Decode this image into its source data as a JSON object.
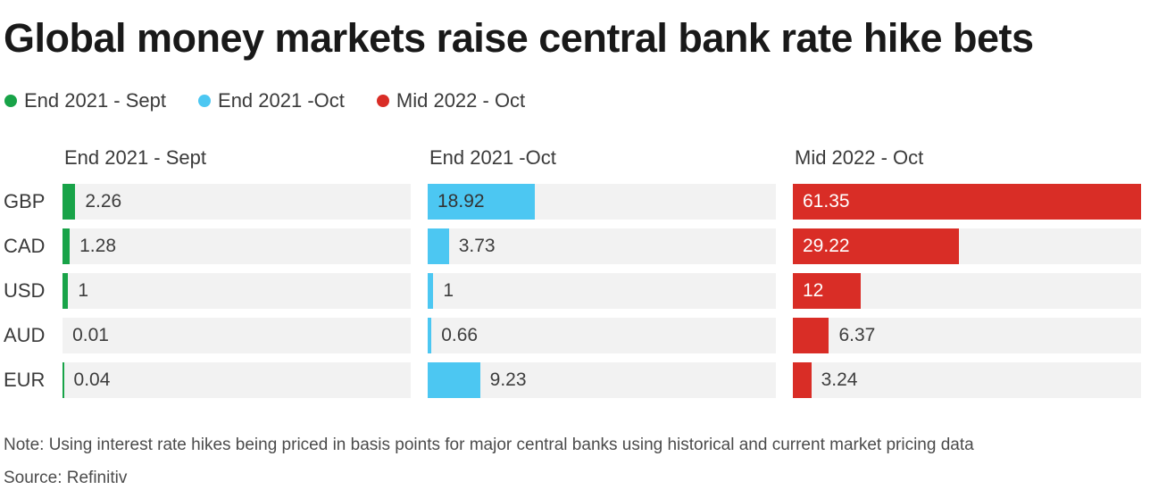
{
  "title": "Global money markets raise central bank rate hike bets",
  "note": "Note: Using interest rate hikes being priced in basis points for major central banks using historical and current market pricing data",
  "source": "Source: Refinitiv",
  "colors": {
    "green": "#18a348",
    "blue": "#4cc7f2",
    "red": "#d92d26",
    "track": "#f2f2f2",
    "value_text": "#3d3d3d",
    "title_text": "#191919"
  },
  "chart_data": {
    "type": "bar",
    "orientation": "horizontal",
    "title": "Global money markets raise central bank rate hike bets",
    "categories": [
      "GBP",
      "CAD",
      "USD",
      "AUD",
      "EUR"
    ],
    "series": [
      {
        "name": "End 2021 - Sept",
        "color": "#18a348",
        "inside_label_color": "#333333",
        "values": [
          2.26,
          1.28,
          1,
          0.01,
          0.04
        ],
        "labels": [
          "2.26",
          "1.28",
          "1",
          "0.01",
          "0.04"
        ]
      },
      {
        "name": "End 2021 -Oct",
        "color": "#4cc7f2",
        "inside_label_color": "#333333",
        "values": [
          18.92,
          3.73,
          1,
          0.66,
          9.23
        ],
        "labels": [
          "18.92",
          "3.73",
          "1",
          "0.66",
          "9.23"
        ]
      },
      {
        "name": "Mid 2022 - Oct",
        "color": "#d92d26",
        "inside_label_color": "#ffffff",
        "values": [
          61.35,
          29.22,
          12,
          6.37,
          3.24
        ],
        "labels": [
          "61.35",
          "29.22",
          "12",
          "6.37",
          "3.24"
        ]
      }
    ],
    "xlim": [
      0,
      61.35
    ],
    "grid": false,
    "legend_position": "top",
    "track_color": "#f2f2f2",
    "value_label_color": "#3d3d3d",
    "inside_label_threshold_pct": 18
  }
}
